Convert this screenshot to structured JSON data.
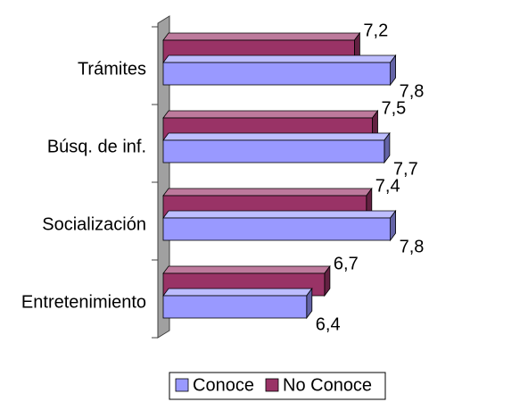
{
  "chart_data": {
    "type": "bar3d_horizontal",
    "categories": [
      "Trámites",
      "Búsq. de inf.",
      "Socialización",
      "Entretenimiento"
    ],
    "series": [
      {
        "name": "Conoce",
        "color": "#9999ff",
        "values": [
          7.8,
          7.7,
          7.8,
          6.4
        ],
        "value_labels": [
          "7,8",
          "7,7",
          "7,8",
          "6,4"
        ]
      },
      {
        "name": "No Conoce",
        "color": "#993366",
        "values": [
          7.2,
          7.5,
          7.4,
          6.7
        ],
        "value_labels": [
          "7,2",
          "7,5",
          "7,4",
          "6,7"
        ]
      }
    ],
    "xlim": [
      4,
      9
    ],
    "legend": "bottom"
  }
}
